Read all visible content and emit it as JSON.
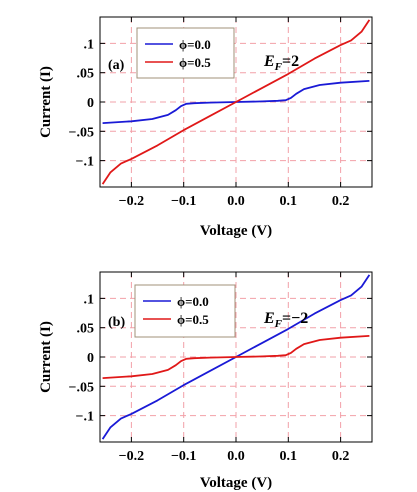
{
  "chart_data": [
    {
      "type": "line",
      "panel_label": "(a)",
      "annotation": {
        "prefix": "E",
        "subscript": "F",
        "suffix": "=2"
      },
      "xlabel": "Voltage (V)",
      "ylabel": "Current (I)",
      "xlim": [
        -0.26,
        0.26
      ],
      "ylim": [
        -0.145,
        0.145
      ],
      "x_ticks": [
        -0.2,
        -0.1,
        0.0,
        0.1,
        0.2
      ],
      "x_tick_labels": [
        "−0.2",
        "−0.1",
        "0.0",
        "0.1",
        "0.2"
      ],
      "y_ticks": [
        0.1,
        0.05,
        0,
        -0.05,
        -0.1
      ],
      "y_tick_labels": [
        ".1",
        ".05",
        "0",
        "−.05",
        "−.1"
      ],
      "grid": true,
      "legend_position": "top-left",
      "series": [
        {
          "name": "ϕ=0.0",
          "color": "#1a1ad6",
          "x": [
            -0.255,
            -0.2,
            -0.16,
            -0.13,
            -0.115,
            -0.105,
            -0.095,
            -0.08,
            -0.05,
            0.0,
            0.05,
            0.08,
            0.095,
            0.105,
            0.115,
            0.13,
            0.16,
            0.2,
            0.255
          ],
          "y": [
            -0.036,
            -0.033,
            -0.029,
            -0.022,
            -0.014,
            -0.007,
            -0.003,
            -0.002,
            -0.001,
            0.0,
            0.001,
            0.002,
            0.003,
            0.007,
            0.014,
            0.022,
            0.029,
            0.033,
            0.036
          ]
        },
        {
          "name": "ϕ=0.5",
          "color": "#e01818",
          "x": [
            -0.255,
            -0.24,
            -0.22,
            -0.2,
            -0.15,
            -0.1,
            -0.05,
            0.0,
            0.05,
            0.1,
            0.15,
            0.2,
            0.22,
            0.24,
            0.255
          ],
          "y": [
            -0.14,
            -0.12,
            -0.105,
            -0.097,
            -0.074,
            -0.048,
            -0.024,
            0.0,
            0.024,
            0.048,
            0.074,
            0.097,
            0.105,
            0.12,
            0.14
          ]
        }
      ]
    },
    {
      "type": "line",
      "panel_label": "(b)",
      "annotation": {
        "prefix": "E",
        "subscript": "F",
        "suffix": "=−2"
      },
      "xlabel": "Voltage (V)",
      "ylabel": "Current (I)",
      "xlim": [
        -0.26,
        0.26
      ],
      "ylim": [
        -0.145,
        0.145
      ],
      "x_ticks": [
        -0.2,
        -0.1,
        0.0,
        0.1,
        0.2
      ],
      "x_tick_labels": [
        "−0.2",
        "−0.1",
        "0.0",
        "0.1",
        "0.2"
      ],
      "y_ticks": [
        0.1,
        0.05,
        0,
        -0.05,
        -0.1
      ],
      "y_tick_labels": [
        ".1",
        ".05",
        "0",
        "−.05",
        "−.1"
      ],
      "grid": true,
      "legend_position": "top-left",
      "series": [
        {
          "name": "ϕ=0.0",
          "color": "#1a1ad6",
          "x": [
            -0.255,
            -0.24,
            -0.22,
            -0.2,
            -0.15,
            -0.1,
            -0.05,
            0.0,
            0.05,
            0.1,
            0.15,
            0.2,
            0.22,
            0.24,
            0.255
          ],
          "y": [
            -0.14,
            -0.12,
            -0.105,
            -0.097,
            -0.074,
            -0.048,
            -0.024,
            0.0,
            0.024,
            0.048,
            0.074,
            0.097,
            0.105,
            0.12,
            0.14
          ]
        },
        {
          "name": "ϕ=0.5",
          "color": "#e01818",
          "x": [
            -0.255,
            -0.2,
            -0.16,
            -0.13,
            -0.115,
            -0.105,
            -0.095,
            -0.08,
            -0.05,
            0.0,
            0.05,
            0.08,
            0.095,
            0.105,
            0.115,
            0.13,
            0.16,
            0.2,
            0.255
          ],
          "y": [
            -0.036,
            -0.033,
            -0.029,
            -0.022,
            -0.014,
            -0.007,
            -0.003,
            -0.002,
            -0.001,
            0.0,
            0.001,
            0.002,
            0.003,
            0.007,
            0.014,
            0.022,
            0.029,
            0.033,
            0.036
          ]
        }
      ]
    }
  ]
}
